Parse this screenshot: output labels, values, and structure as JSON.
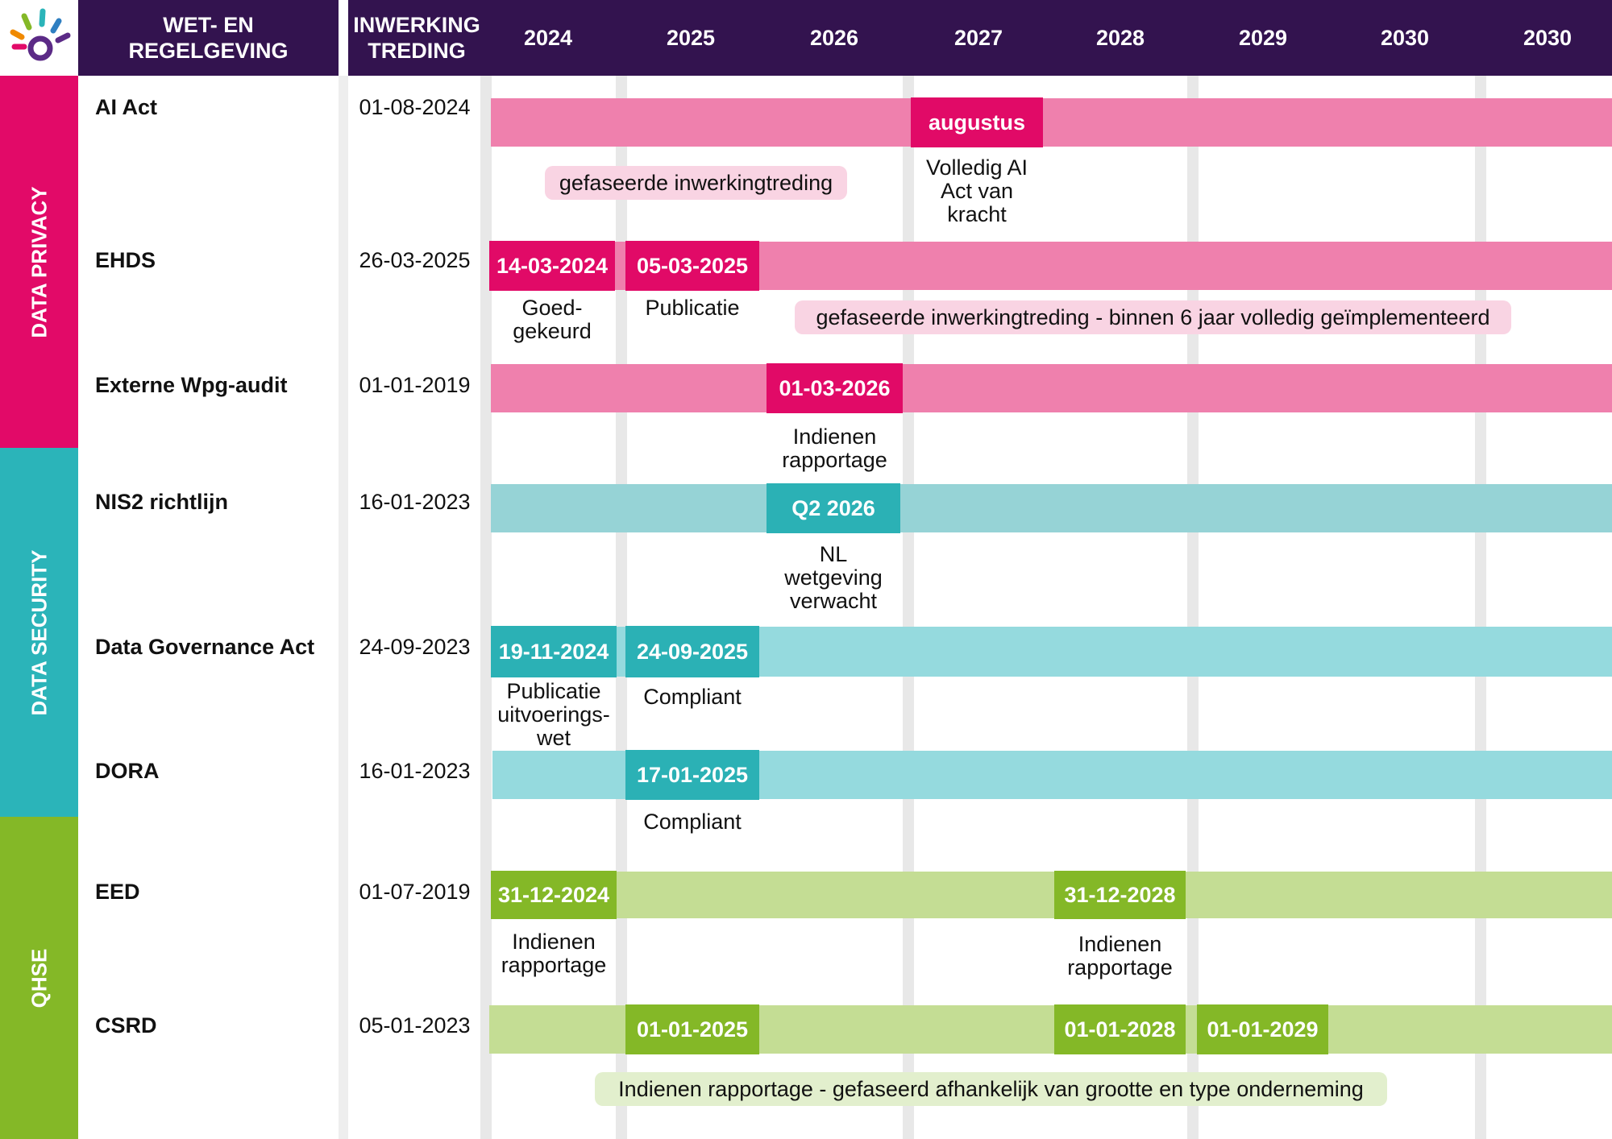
{
  "header": {
    "col_law": "WET- EN\nREGELGEVING",
    "col_effective": "INWERKING\nTREDING",
    "years": [
      "2024",
      "2025",
      "2026",
      "2027",
      "2028",
      "2029",
      "2030",
      "2030"
    ]
  },
  "colors": {
    "header": "#33134f",
    "privacy_band": "#e20a68",
    "privacy_bar": "#ef80ad",
    "privacy_milestone": "#e10a67",
    "privacy_note": "#f9d4e3",
    "security_band": "#2bb4b9",
    "security_bar_1": "#96d3d6",
    "security_bar_2": "#95dade",
    "security_milestone": "#2bb1b5",
    "qhse_band": "#84b827",
    "qhse_bar": "#c4dd94",
    "qhse_milestone": "#84b827",
    "qhse_note": "#e2efcd"
  },
  "bands": [
    {
      "name": "privacy",
      "label": "DATA PRIVACY"
    },
    {
      "name": "security",
      "label": "DATA SECURITY"
    },
    {
      "name": "qhse",
      "label": "QHSE"
    }
  ],
  "rows": [
    {
      "id": "ai-act",
      "name": "AI Act",
      "date": "01-08-2024",
      "band": "privacy",
      "milestones": [
        {
          "label": "augustus",
          "caption": "Volledig AI\nAct van\nkracht"
        }
      ],
      "note": "gefaseerde inwerkingtreding"
    },
    {
      "id": "ehds",
      "name": "EHDS",
      "date": "26-03-2025",
      "band": "privacy",
      "milestones": [
        {
          "label": "14-03-2024",
          "caption": "Goed-\ngekeurd"
        },
        {
          "label": "05-03-2025",
          "caption": "Publicatie"
        }
      ],
      "note": "gefaseerde inwerkingtreding - binnen 6 jaar volledig geïmplementeerd"
    },
    {
      "id": "wpg",
      "name": "Externe Wpg-audit",
      "date": "01-01-2019",
      "band": "privacy",
      "milestones": [
        {
          "label": "01-03-2026",
          "caption": "Indienen\nrapportage"
        }
      ]
    },
    {
      "id": "nis2",
      "name": "NIS2 richtlijn",
      "date": "16-01-2023",
      "band": "security",
      "milestones": [
        {
          "label": "Q2 2026",
          "caption": "NL\nwetgeving\nverwacht"
        }
      ]
    },
    {
      "id": "dga",
      "name": "Data Governance Act",
      "date": "24-09-2023",
      "band": "security",
      "milestones": [
        {
          "label": "19-11-2024",
          "caption": "Publicatie\nuitvoerings-\nwet"
        },
        {
          "label": "24-09-2025",
          "caption": "Compliant"
        }
      ]
    },
    {
      "id": "dora",
      "name": "DORA",
      "date": "16-01-2023",
      "band": "security",
      "milestones": [
        {
          "label": "17-01-2025",
          "caption": "Compliant"
        }
      ]
    },
    {
      "id": "eed",
      "name": "EED",
      "date": "01-07-2019",
      "band": "qhse",
      "milestones": [
        {
          "label": "31-12-2024",
          "caption": "Indienen\nrapportage"
        },
        {
          "label": "31-12-2028",
          "caption": "Indienen\nrapportage"
        }
      ]
    },
    {
      "id": "csrd",
      "name": "CSRD",
      "date": "05-01-2023",
      "band": "qhse",
      "milestones": [
        {
          "label": "01-01-2025",
          "caption": ""
        },
        {
          "label": "01-01-2028",
          "caption": ""
        },
        {
          "label": "01-01-2029",
          "caption": ""
        }
      ],
      "note": "Indienen rapportage - gefaseerd afhankelijk van grootte en type onderneming"
    }
  ]
}
